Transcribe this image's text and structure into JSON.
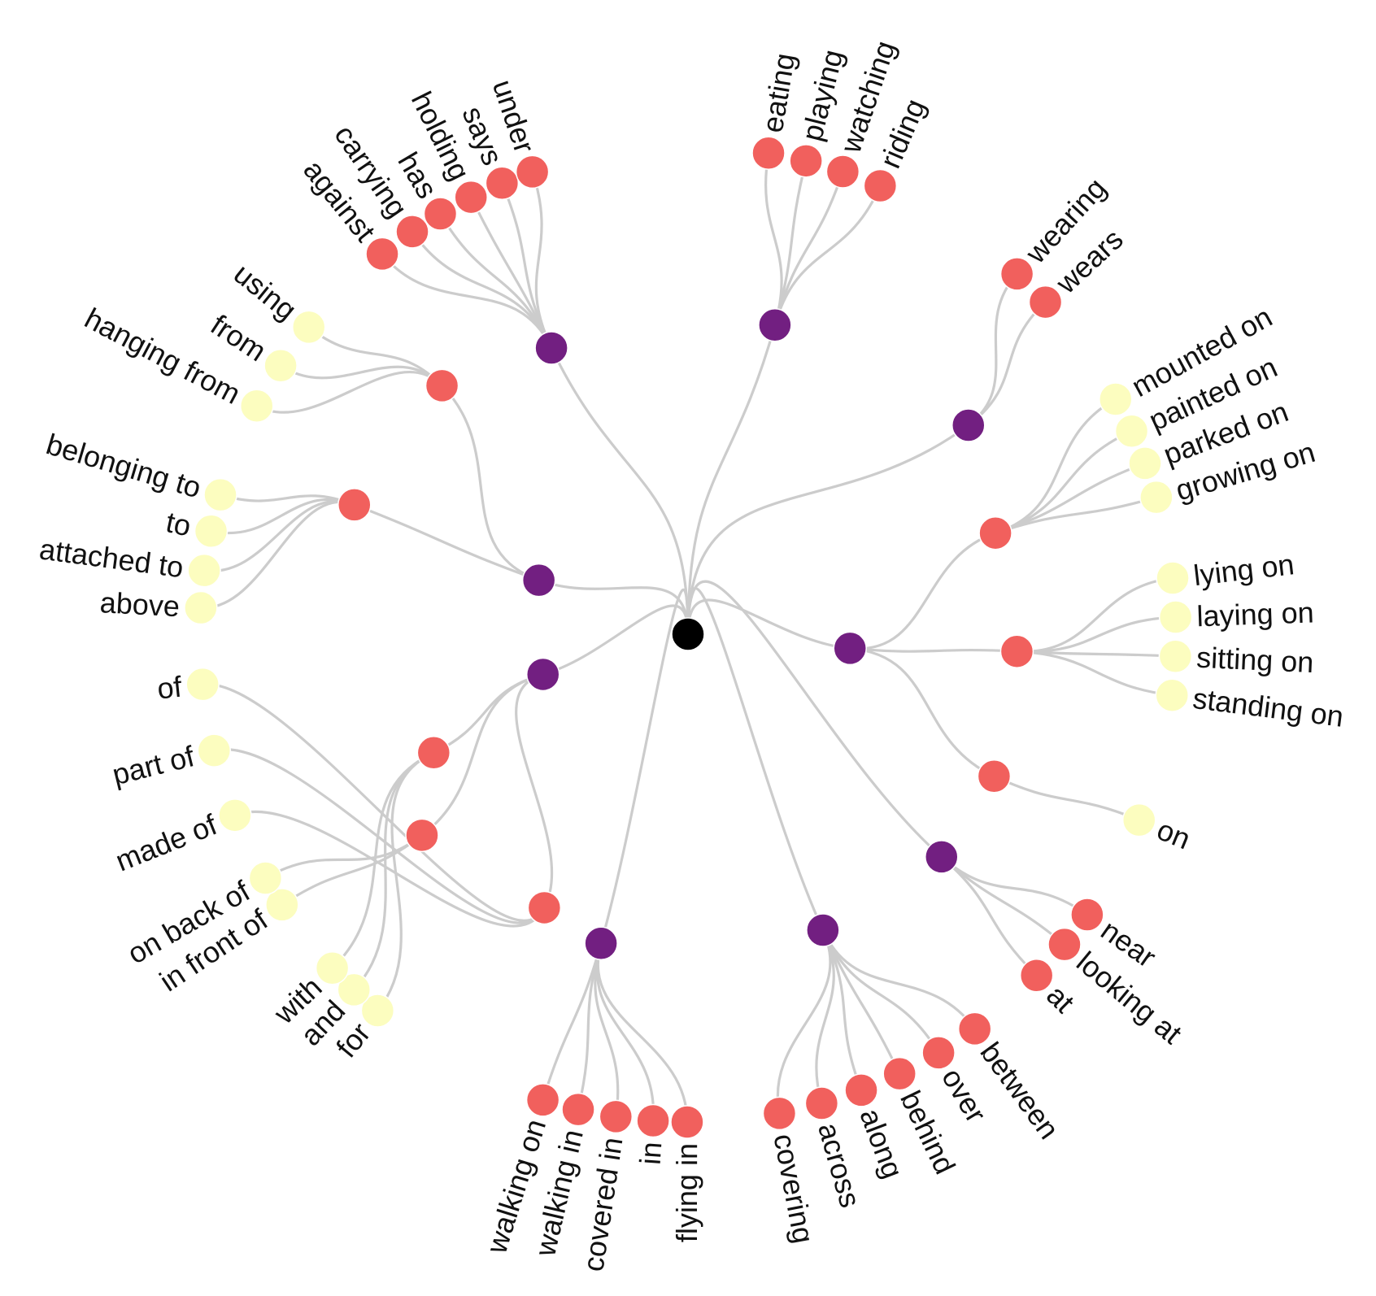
{
  "colors": {
    "root": "#000000",
    "level1": "#721f81",
    "level2": "#f1605d",
    "level3": "#fcfdbf",
    "link": "#cccccc",
    "text": "#111111"
  },
  "tree": {
    "name": "",
    "children": [
      {
        "name": "",
        "children": [
          {
            "name": "against"
          },
          {
            "name": "carrying"
          },
          {
            "name": "has"
          },
          {
            "name": "holding"
          },
          {
            "name": "says"
          },
          {
            "name": "under"
          }
        ]
      },
      {
        "name": "",
        "children": [
          {
            "name": "eating"
          },
          {
            "name": "playing"
          },
          {
            "name": "watching"
          },
          {
            "name": "riding"
          }
        ]
      },
      {
        "name": "",
        "children": [
          {
            "name": "wearing"
          },
          {
            "name": "wears"
          }
        ]
      },
      {
        "name": "",
        "children": [
          {
            "name": "",
            "children": [
              {
                "name": "mounted on"
              },
              {
                "name": "painted on"
              },
              {
                "name": "parked on"
              },
              {
                "name": "growing on"
              }
            ]
          },
          {
            "name": "",
            "children": [
              {
                "name": "lying on"
              },
              {
                "name": "laying on"
              },
              {
                "name": "sitting on"
              },
              {
                "name": "standing on"
              }
            ]
          },
          {
            "name": "",
            "children": [
              {
                "name": "on"
              }
            ]
          }
        ]
      },
      {
        "name": "",
        "children": [
          {
            "name": "near"
          },
          {
            "name": "looking at"
          },
          {
            "name": "at"
          }
        ]
      },
      {
        "name": "",
        "children": [
          {
            "name": "between"
          },
          {
            "name": "over"
          },
          {
            "name": "behind"
          },
          {
            "name": "along"
          },
          {
            "name": "across"
          },
          {
            "name": "covering"
          }
        ]
      },
      {
        "name": "",
        "children": [
          {
            "name": "flying in"
          },
          {
            "name": "in"
          },
          {
            "name": "covered in"
          },
          {
            "name": "walking in"
          },
          {
            "name": "walking on"
          }
        ]
      },
      {
        "name": "",
        "children": [
          {
            "name": "",
            "children": [
              {
                "name": "for"
              },
              {
                "name": "and"
              },
              {
                "name": "with"
              }
            ]
          },
          {
            "name": "",
            "children": [
              {
                "name": "in front of"
              },
              {
                "name": "on back of"
              }
            ]
          },
          {
            "name": "",
            "children": [
              {
                "name": "made of"
              },
              {
                "name": "part of"
              },
              {
                "name": "of"
              }
            ]
          }
        ]
      },
      {
        "name": "",
        "children": [
          {
            "name": "",
            "children": [
              {
                "name": "above"
              },
              {
                "name": "attached to"
              },
              {
                "name": "to"
              },
              {
                "name": "belonging to"
              }
            ]
          },
          {
            "name": "",
            "children": [
              {
                "name": "hanging from"
              },
              {
                "name": "from"
              },
              {
                "name": "using"
              }
            ]
          }
        ]
      }
    ]
  }
}
